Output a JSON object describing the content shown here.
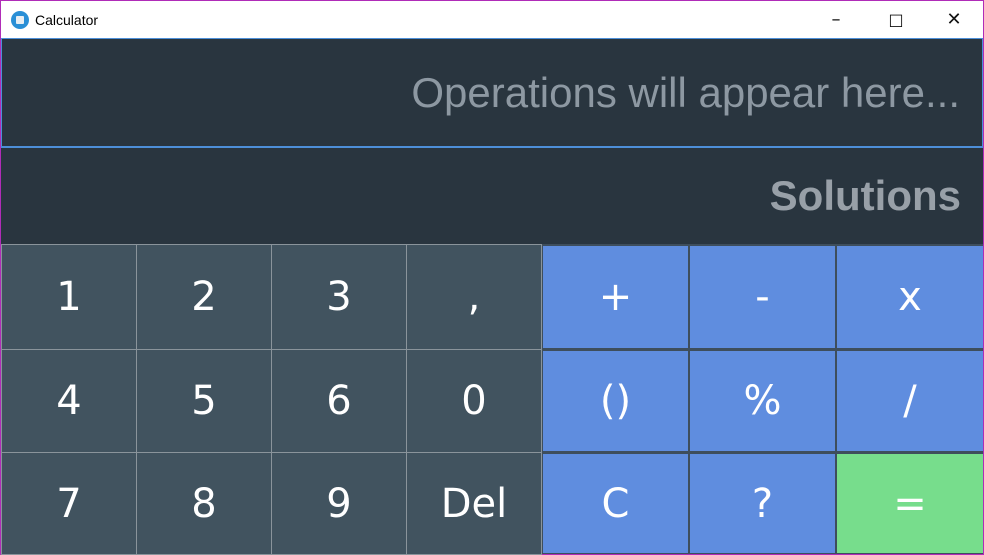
{
  "window": {
    "title": "Calculator",
    "icon": "calculator-icon",
    "controls": [
      "minimize",
      "maximize",
      "close"
    ]
  },
  "display": {
    "operations_placeholder": "Operations will appear here...",
    "solution_placeholder": "Solutions"
  },
  "keys": {
    "numbers": [
      [
        "1",
        "2",
        "3",
        ","
      ],
      [
        "4",
        "5",
        "6",
        "0"
      ],
      [
        "7",
        "8",
        "9",
        "Del"
      ]
    ],
    "operators": [
      [
        "+",
        "-",
        "x"
      ],
      [
        "()",
        "%",
        "/"
      ],
      [
        "C",
        "?",
        "="
      ]
    ]
  },
  "colors": {
    "display": "#29353f",
    "number_key": "#41535f",
    "operator_key": "#5f8ddf",
    "equals_key": "#77dd8c",
    "accent": "#4d8fd8"
  }
}
